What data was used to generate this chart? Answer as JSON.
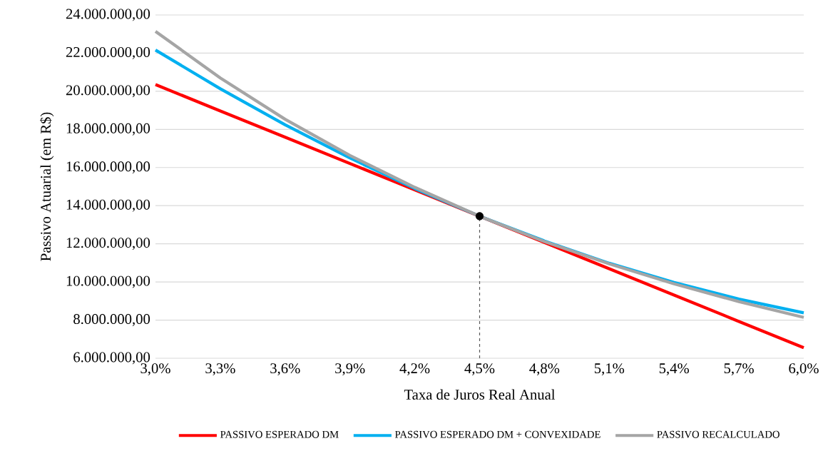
{
  "chart_data": {
    "type": "line",
    "xlabel": "Taxa de Juros Real Anual",
    "ylabel": "Passivo Atuarial (em R$)",
    "x": [
      3.0,
      3.3,
      3.6,
      3.9,
      4.2,
      4.5,
      4.8,
      5.1,
      5.4,
      5.7,
      6.0
    ],
    "series": [
      {
        "name": "PASSIVO ESPERADO DM",
        "color": "#ff0000",
        "values": [
          20350000,
          18970000,
          17590000,
          16210000,
          14830000,
          13450000,
          12070000,
          10690000,
          9310000,
          7930000,
          6550000
        ]
      },
      {
        "name": "PASSIVO ESPERADO DM + CONVEXIDADE",
        "color": "#00b0f0",
        "values": [
          22160000,
          20130000,
          18240000,
          16500000,
          14900000,
          13450000,
          12150000,
          10980000,
          9970000,
          9100000,
          8380000
        ]
      },
      {
        "name": "PASSIVO RECALCULADO",
        "color": "#a5a5a5",
        "values": [
          23140000,
          20700000,
          18530000,
          16630000,
          14960000,
          13450000,
          12120000,
          10950000,
          9900000,
          8970000,
          8140000
        ]
      },
      {
        "type": "scatter",
        "color": "#000000",
        "x": [
          4.5
        ],
        "values": [
          13450000
        ]
      }
    ],
    "ref_lines": [
      {
        "axis": "x",
        "value": 4.5,
        "color": "#595959",
        "line_style": "dashed"
      }
    ],
    "xlim": [
      3.0,
      6.0
    ],
    "xticks": [
      {
        "value": 3.0,
        "label": "3,0%"
      },
      {
        "value": 3.3,
        "label": "3,3%"
      },
      {
        "value": 3.6,
        "label": "3,6%"
      },
      {
        "value": 3.9,
        "label": "3,9%"
      },
      {
        "value": 4.2,
        "label": "4,2%"
      },
      {
        "value": 4.5,
        "label": "4,5%"
      },
      {
        "value": 4.8,
        "label": "4,8%"
      },
      {
        "value": 5.1,
        "label": "5,1%"
      },
      {
        "value": 5.4,
        "label": "5,4%"
      },
      {
        "value": 5.7,
        "label": "5,7%"
      },
      {
        "value": 6.0,
        "label": "6,0%"
      }
    ],
    "ylim": [
      6000000,
      24000000
    ],
    "yticks": [
      {
        "value": 6000000,
        "label": "6.000.000,00"
      },
      {
        "value": 8000000,
        "label": "8.000.000,00"
      },
      {
        "value": 10000000,
        "label": "10.000.000,00"
      },
      {
        "value": 12000000,
        "label": "12.000.000,00"
      },
      {
        "value": 14000000,
        "label": "14.000.000,00"
      },
      {
        "value": 16000000,
        "label": "16.000.000,00"
      },
      {
        "value": 18000000,
        "label": "18.000.000,00"
      },
      {
        "value": 20000000,
        "label": "20.000.000,00"
      },
      {
        "value": 22000000,
        "label": "22.000.000,00"
      },
      {
        "value": 24000000,
        "label": "24.000.000,00"
      }
    ],
    "grid": "y",
    "legend": "bottom",
    "line_style": "solid"
  }
}
